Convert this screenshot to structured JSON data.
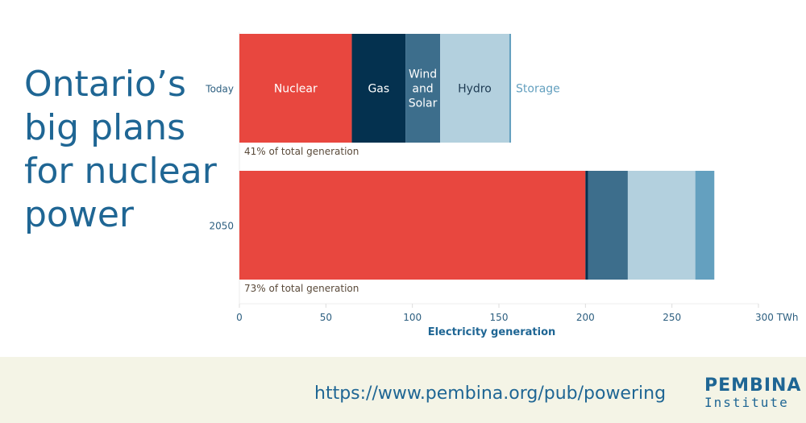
{
  "title": "Ontario’s big plans for nuclear power",
  "footer": {
    "url": "https://www.pembina.org/pub/powering",
    "logo_line1": "PEMBINA",
    "logo_line2": "Institute"
  },
  "chart_data": {
    "type": "bar",
    "orientation": "horizontal",
    "stacked": true,
    "categories": [
      "Today",
      "2050"
    ],
    "series": [
      {
        "name": "Nuclear",
        "color": "#e8473f",
        "values": [
          65,
          200
        ]
      },
      {
        "name": "Gas",
        "color": "#04314f",
        "values": [
          31,
          1.5
        ]
      },
      {
        "name": "Wind and Solar",
        "color": "#3d6e8c",
        "values": [
          20,
          23
        ]
      },
      {
        "name": "Hydro",
        "color": "#b3d0de",
        "values": [
          40,
          39
        ]
      },
      {
        "name": "Storage",
        "color": "#64a0bf",
        "values": [
          1,
          11
        ]
      }
    ],
    "annotations": [
      "41% of total generation",
      "73% of total generation"
    ],
    "xlabel": "Electricity generation",
    "xticks": [
      "0",
      "50",
      "100",
      "150",
      "200",
      "250",
      "300 TWh"
    ],
    "xlim": [
      0,
      300
    ]
  }
}
